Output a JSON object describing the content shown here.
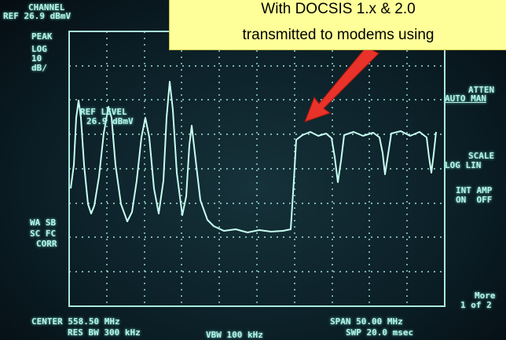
{
  "callout": {
    "lines": [
      "With DOCSIS 1.x & 2.0",
      "transmitted to modems using"
    ]
  },
  "screen": {
    "channel": "CHANNEL",
    "ref": "REF 26.9 dBmV",
    "left": [
      "PEAK",
      "LOG",
      "10",
      "dB/",
      "WA SB",
      "SC FC",
      "CORR"
    ],
    "ref_level": {
      "title": "REF LEVEL",
      "value": "26.9 dBmV"
    },
    "softkeys": [
      {
        "title": "ATTEN",
        "options": "AUTO MAN"
      },
      {
        "title": "SCALE",
        "options": "LOG LIN"
      },
      {
        "title": "INT AMP",
        "options": "ON  OFF"
      },
      {
        "title": "More",
        "options": "1 of 2"
      }
    ],
    "bottom": {
      "center": "CENTER 558.50 MHz",
      "res_bw": "RES BW 300 kHz",
      "vbw": "VBW 100 kHz",
      "span": "SPAN 50.00 MHz",
      "swp": "SWP 20.0 msec"
    }
  }
}
